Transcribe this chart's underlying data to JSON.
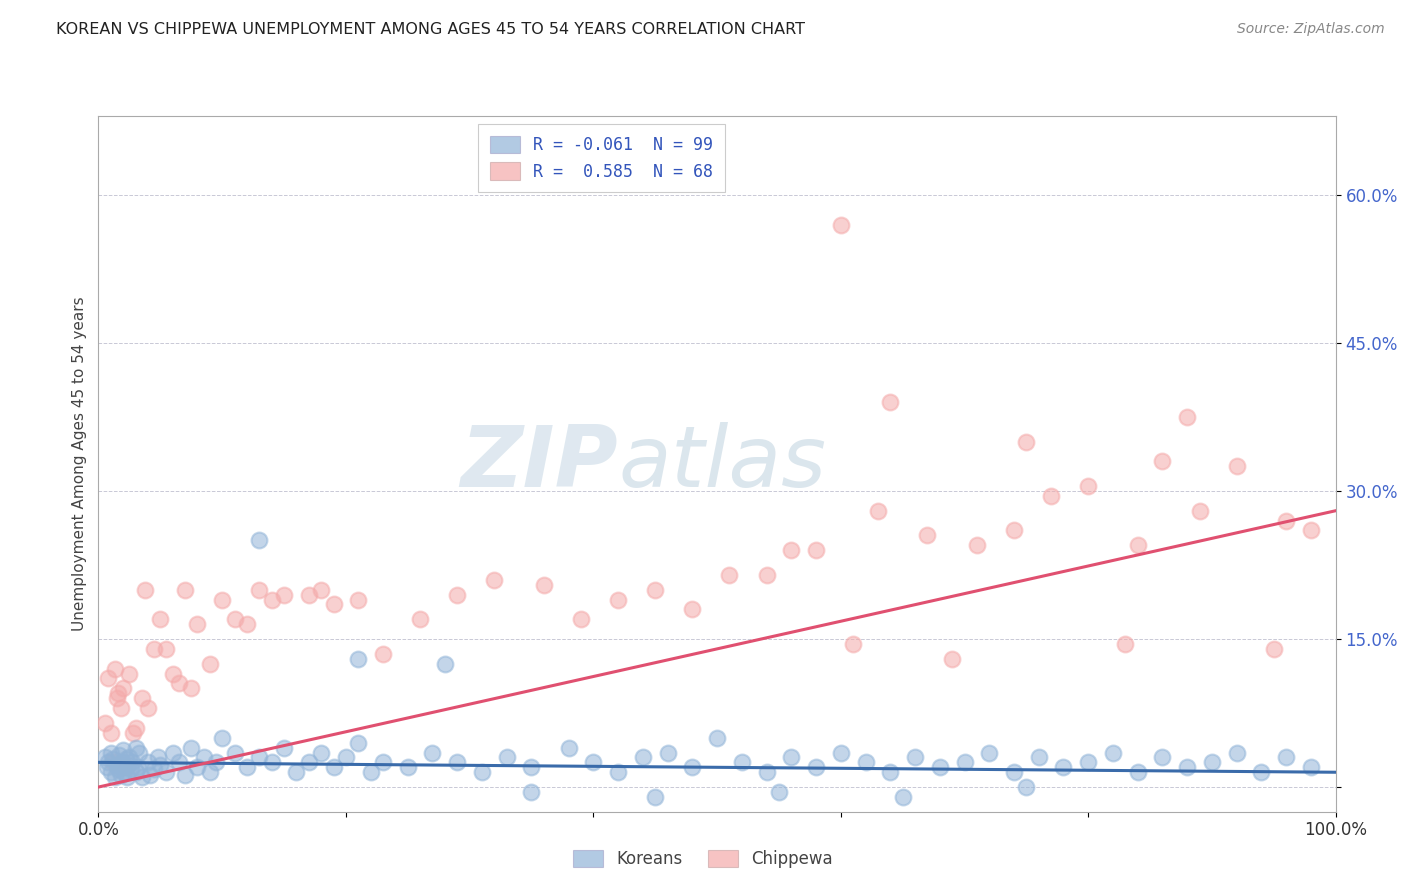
{
  "title": "KOREAN VS CHIPPEWA UNEMPLOYMENT AMONG AGES 45 TO 54 YEARS CORRELATION CHART",
  "source": "Source: ZipAtlas.com",
  "ylabel": "Unemployment Among Ages 45 to 54 years",
  "xlim": [
    0,
    1.0
  ],
  "ylim": [
    -0.025,
    0.68
  ],
  "xticks": [
    0.0,
    0.2,
    0.4,
    0.6,
    0.8,
    1.0
  ],
  "xtick_labels": [
    "0.0%",
    "",
    "",
    "",
    "",
    "100.0%"
  ],
  "ytick_labels": [
    "",
    "15.0%",
    "30.0%",
    "45.0%",
    "60.0%"
  ],
  "yticks": [
    0.0,
    0.15,
    0.3,
    0.45,
    0.6
  ],
  "korean_color": "#92B4D8",
  "chippewa_color": "#F4AAAA",
  "korean_line_color": "#3A6BAA",
  "chippewa_line_color": "#E05070",
  "korean_R": -0.061,
  "korean_N": 99,
  "chippewa_R": 0.585,
  "chippewa_N": 68,
  "watermark_zip": "ZIP",
  "watermark_atlas": "atlas",
  "background_color": "#FFFFFF",
  "legend_text_color": "#3355BB",
  "title_fontsize": 11.5,
  "korean_x": [
    0.005,
    0.007,
    0.008,
    0.01,
    0.01,
    0.012,
    0.013,
    0.015,
    0.016,
    0.017,
    0.018,
    0.019,
    0.02,
    0.02,
    0.021,
    0.022,
    0.023,
    0.024,
    0.025,
    0.026,
    0.027,
    0.03,
    0.03,
    0.032,
    0.033,
    0.035,
    0.04,
    0.042,
    0.045,
    0.048,
    0.05,
    0.055,
    0.06,
    0.065,
    0.07,
    0.075,
    0.08,
    0.085,
    0.09,
    0.095,
    0.1,
    0.11,
    0.12,
    0.13,
    0.14,
    0.15,
    0.16,
    0.17,
    0.18,
    0.19,
    0.2,
    0.21,
    0.22,
    0.23,
    0.25,
    0.27,
    0.29,
    0.31,
    0.33,
    0.35,
    0.38,
    0.4,
    0.42,
    0.44,
    0.46,
    0.48,
    0.5,
    0.52,
    0.54,
    0.56,
    0.58,
    0.6,
    0.62,
    0.64,
    0.66,
    0.68,
    0.7,
    0.72,
    0.74,
    0.76,
    0.78,
    0.8,
    0.82,
    0.84,
    0.86,
    0.88,
    0.9,
    0.92,
    0.94,
    0.96,
    0.98,
    0.35,
    0.45,
    0.55,
    0.65,
    0.75,
    0.13,
    0.21,
    0.28
  ],
  "korean_y": [
    0.03,
    0.02,
    0.025,
    0.035,
    0.015,
    0.028,
    0.01,
    0.022,
    0.018,
    0.032,
    0.012,
    0.025,
    0.02,
    0.038,
    0.015,
    0.028,
    0.01,
    0.022,
    0.03,
    0.018,
    0.025,
    0.04,
    0.015,
    0.02,
    0.035,
    0.01,
    0.025,
    0.012,
    0.018,
    0.03,
    0.022,
    0.015,
    0.035,
    0.025,
    0.012,
    0.04,
    0.02,
    0.03,
    0.015,
    0.025,
    0.05,
    0.035,
    0.02,
    0.03,
    0.025,
    0.04,
    0.015,
    0.025,
    0.035,
    0.02,
    0.03,
    0.045,
    0.015,
    0.025,
    0.02,
    0.035,
    0.025,
    0.015,
    0.03,
    0.02,
    0.04,
    0.025,
    0.015,
    0.03,
    0.035,
    0.02,
    0.05,
    0.025,
    0.015,
    0.03,
    0.02,
    0.035,
    0.025,
    0.015,
    0.03,
    0.02,
    0.025,
    0.035,
    0.015,
    0.03,
    0.02,
    0.025,
    0.035,
    0.015,
    0.03,
    0.02,
    0.025,
    0.035,
    0.015,
    0.03,
    0.02,
    -0.005,
    -0.01,
    -0.005,
    -0.01,
    0.0,
    0.25,
    0.13,
    0.125
  ],
  "chippewa_x": [
    0.005,
    0.008,
    0.01,
    0.012,
    0.015,
    0.018,
    0.02,
    0.025,
    0.03,
    0.035,
    0.04,
    0.045,
    0.05,
    0.06,
    0.07,
    0.08,
    0.09,
    0.1,
    0.11,
    0.12,
    0.13,
    0.15,
    0.17,
    0.19,
    0.21,
    0.23,
    0.26,
    0.29,
    0.32,
    0.36,
    0.39,
    0.42,
    0.45,
    0.48,
    0.51,
    0.54,
    0.58,
    0.61,
    0.64,
    0.67,
    0.71,
    0.74,
    0.77,
    0.8,
    0.83,
    0.86,
    0.89,
    0.92,
    0.95,
    0.98,
    0.013,
    0.016,
    0.022,
    0.028,
    0.038,
    0.055,
    0.065,
    0.075,
    0.14,
    0.18,
    0.6,
    0.75,
    0.88,
    0.96,
    0.63,
    0.69,
    0.84,
    0.56
  ],
  "chippewa_y": [
    0.065,
    0.11,
    0.055,
    0.025,
    0.09,
    0.08,
    0.1,
    0.115,
    0.06,
    0.09,
    0.08,
    0.14,
    0.17,
    0.115,
    0.2,
    0.165,
    0.125,
    0.19,
    0.17,
    0.165,
    0.2,
    0.195,
    0.195,
    0.185,
    0.19,
    0.135,
    0.17,
    0.195,
    0.21,
    0.205,
    0.17,
    0.19,
    0.2,
    0.18,
    0.215,
    0.215,
    0.24,
    0.145,
    0.39,
    0.255,
    0.245,
    0.26,
    0.295,
    0.305,
    0.145,
    0.33,
    0.28,
    0.325,
    0.14,
    0.26,
    0.12,
    0.095,
    0.02,
    0.055,
    0.2,
    0.14,
    0.105,
    0.1,
    0.19,
    0.2,
    0.57,
    0.35,
    0.375,
    0.27,
    0.28,
    0.13,
    0.245,
    0.24
  ]
}
